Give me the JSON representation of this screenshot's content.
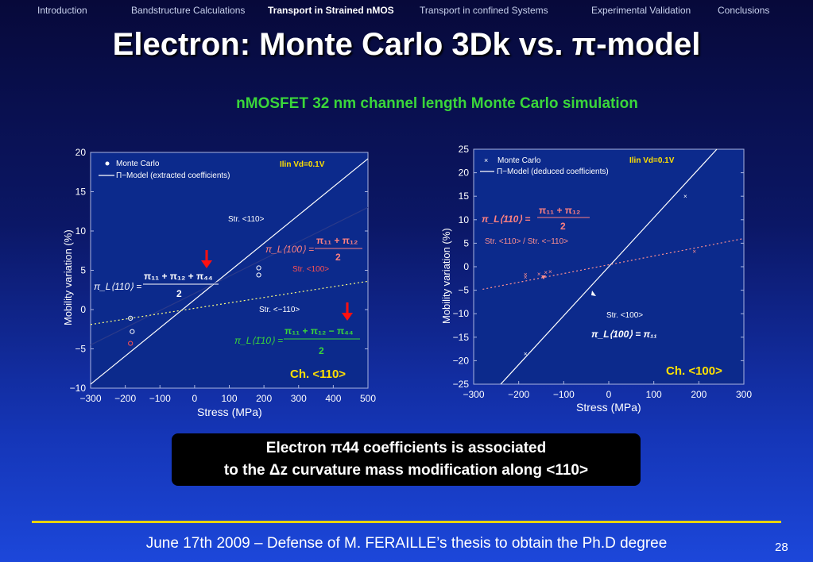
{
  "nav": {
    "items": [
      "Introduction",
      "Bandstructure Calculations",
      "Transport in Strained nMOS",
      "Transport in confined Systems",
      "Experimental Validation",
      "Conclusions"
    ],
    "active_index": 2
  },
  "title": "Electron: Monte Carlo 3Dk vs. π-model",
  "subtitle": "nMOSFET 32 nm channel length Monte Carlo simulation",
  "chart_data": [
    {
      "type": "scatter",
      "xlabel": "Stress (MPa)",
      "ylabel": "Mobility variation (%)",
      "xlim": [
        -300,
        500
      ],
      "ylim": [
        -10,
        20
      ],
      "xticks": [
        -300,
        -200,
        -100,
        0,
        100,
        200,
        300,
        400,
        500
      ],
      "xtick_labels": [
        "−300",
        "−200",
        "−100",
        "0",
        "100",
        "200",
        "300",
        "400",
        "500"
      ],
      "yticks": [
        -10,
        -5,
        0,
        5,
        10,
        15,
        20
      ],
      "ytick_labels": [
        "−10",
        "−5",
        "0",
        "5",
        "10",
        "15",
        "20"
      ],
      "grid": false,
      "legend": {
        "position": "top-left",
        "entries": [
          "Monte Carlo",
          "Π−Model (extracted coefficients)"
        ]
      },
      "corner_label": "Ilin Vd=0.1V",
      "channel_label": "Ch. <110>",
      "series": [
        {
          "name": "Str. <110>",
          "color": "#ffffff",
          "style": "solid",
          "line": [
            [
              -300,
              -9.5
            ],
            [
              500,
              19.2
            ]
          ],
          "points": [
            [
              -185,
              -1.1
            ],
            [
              -185,
              -4.3
            ]
          ]
        },
        {
          "name": "Str. <100>",
          "color": "#2b3a8a",
          "style": "solid",
          "line": [
            [
              -300,
              -4.5
            ],
            [
              500,
              13.0
            ]
          ],
          "points": [
            [
              -180,
              -2.8
            ],
            [
              185,
              5.3
            ],
            [
              185,
              4.4
            ]
          ]
        },
        {
          "name": "Str. <−110>",
          "color": "#ffff80",
          "style": "dotted",
          "line": [
            [
              -300,
              -1.9
            ],
            [
              500,
              3.6
            ]
          ],
          "points": []
        }
      ],
      "point_colors": [
        "#ffffff",
        "#ff5050",
        "#ffffff",
        "#ffffff",
        "#ffffff"
      ],
      "formulas": {
        "f1_lhs": "π_L⟨110⟩ =",
        "f1_num": "π₁₁ + π₁₂ + π₄₄",
        "f1_den": "2",
        "f2_lhs": "π_L⟨100⟩ =",
        "f2_num": "π₁₁ + π₁₂",
        "f2_den": "2",
        "f3_lhs": "π_L⟨1̄10⟩ =",
        "f3_num": "π₁₁ + π₁₂ − π₄₄",
        "f3_den": "2"
      }
    },
    {
      "type": "scatter",
      "xlabel": "Stress (MPa)",
      "ylabel": "Mobility variation (%)",
      "xlim": [
        -300,
        300
      ],
      "ylim": [
        -25,
        25
      ],
      "xticks": [
        -300,
        -200,
        -100,
        0,
        100,
        200,
        300
      ],
      "xtick_labels": [
        "−300",
        "−200",
        "−100",
        "0",
        "100",
        "200",
        "300"
      ],
      "yticks": [
        -25,
        -20,
        -15,
        -10,
        -5,
        0,
        5,
        10,
        15,
        20,
        25
      ],
      "ytick_labels": [
        "−25",
        "−20",
        "−15",
        "−10",
        "−5",
        "0",
        "5",
        "10",
        "15",
        "20",
        "25"
      ],
      "grid": false,
      "legend": {
        "position": "top-left",
        "entries": [
          "Monte Carlo",
          "Π−Model (deduced coefficients)"
        ]
      },
      "corner_label": "Ilin Vd=0.1V",
      "channel_label": "Ch. <100>",
      "series": [
        {
          "name": "Str. <100>",
          "color": "#ffffff",
          "style": "solid",
          "line": [
            [
              -240,
              -25
            ],
            [
              240,
              25
            ]
          ],
          "points": [
            [
              170,
              15
            ],
            [
              -185,
              -18.5
            ]
          ]
        },
        {
          "name": "Str. <110> / Str. <−110>",
          "color": "#ff9090",
          "style": "dotted",
          "line": [
            [
              -280,
              -4.8
            ],
            [
              300,
              6.0
            ]
          ],
          "points": [
            [
              190,
              3.3
            ],
            [
              -185,
              -1.6
            ],
            [
              -185,
              -2.2
            ],
            [
              -155,
              -1.5
            ],
            [
              -140,
              -1.2
            ],
            [
              -130,
              -1.0
            ]
          ]
        }
      ],
      "point_colors": [
        "#ffffff",
        "#ffffff",
        "#ff9090",
        "#ff9090",
        "#ff9090",
        "#ff9090",
        "#ff9090",
        "#ff9090"
      ],
      "formulas": {
        "g1_lhs": "π_L⟨110⟩ =",
        "g1_num": "π₁₁ + π₁₂",
        "g1_den": "2",
        "g2": "π_L⟨100⟩ = π₁₁"
      }
    }
  ],
  "note": {
    "line1": "Electron π44 coefficients is associated",
    "line2": "to the Δz curvature mass modification along <110>"
  },
  "footer": {
    "text": "June 17th 2009 – Defense of M. FERAILLE’s thesis to obtain the Ph.D degree",
    "page": "28"
  }
}
